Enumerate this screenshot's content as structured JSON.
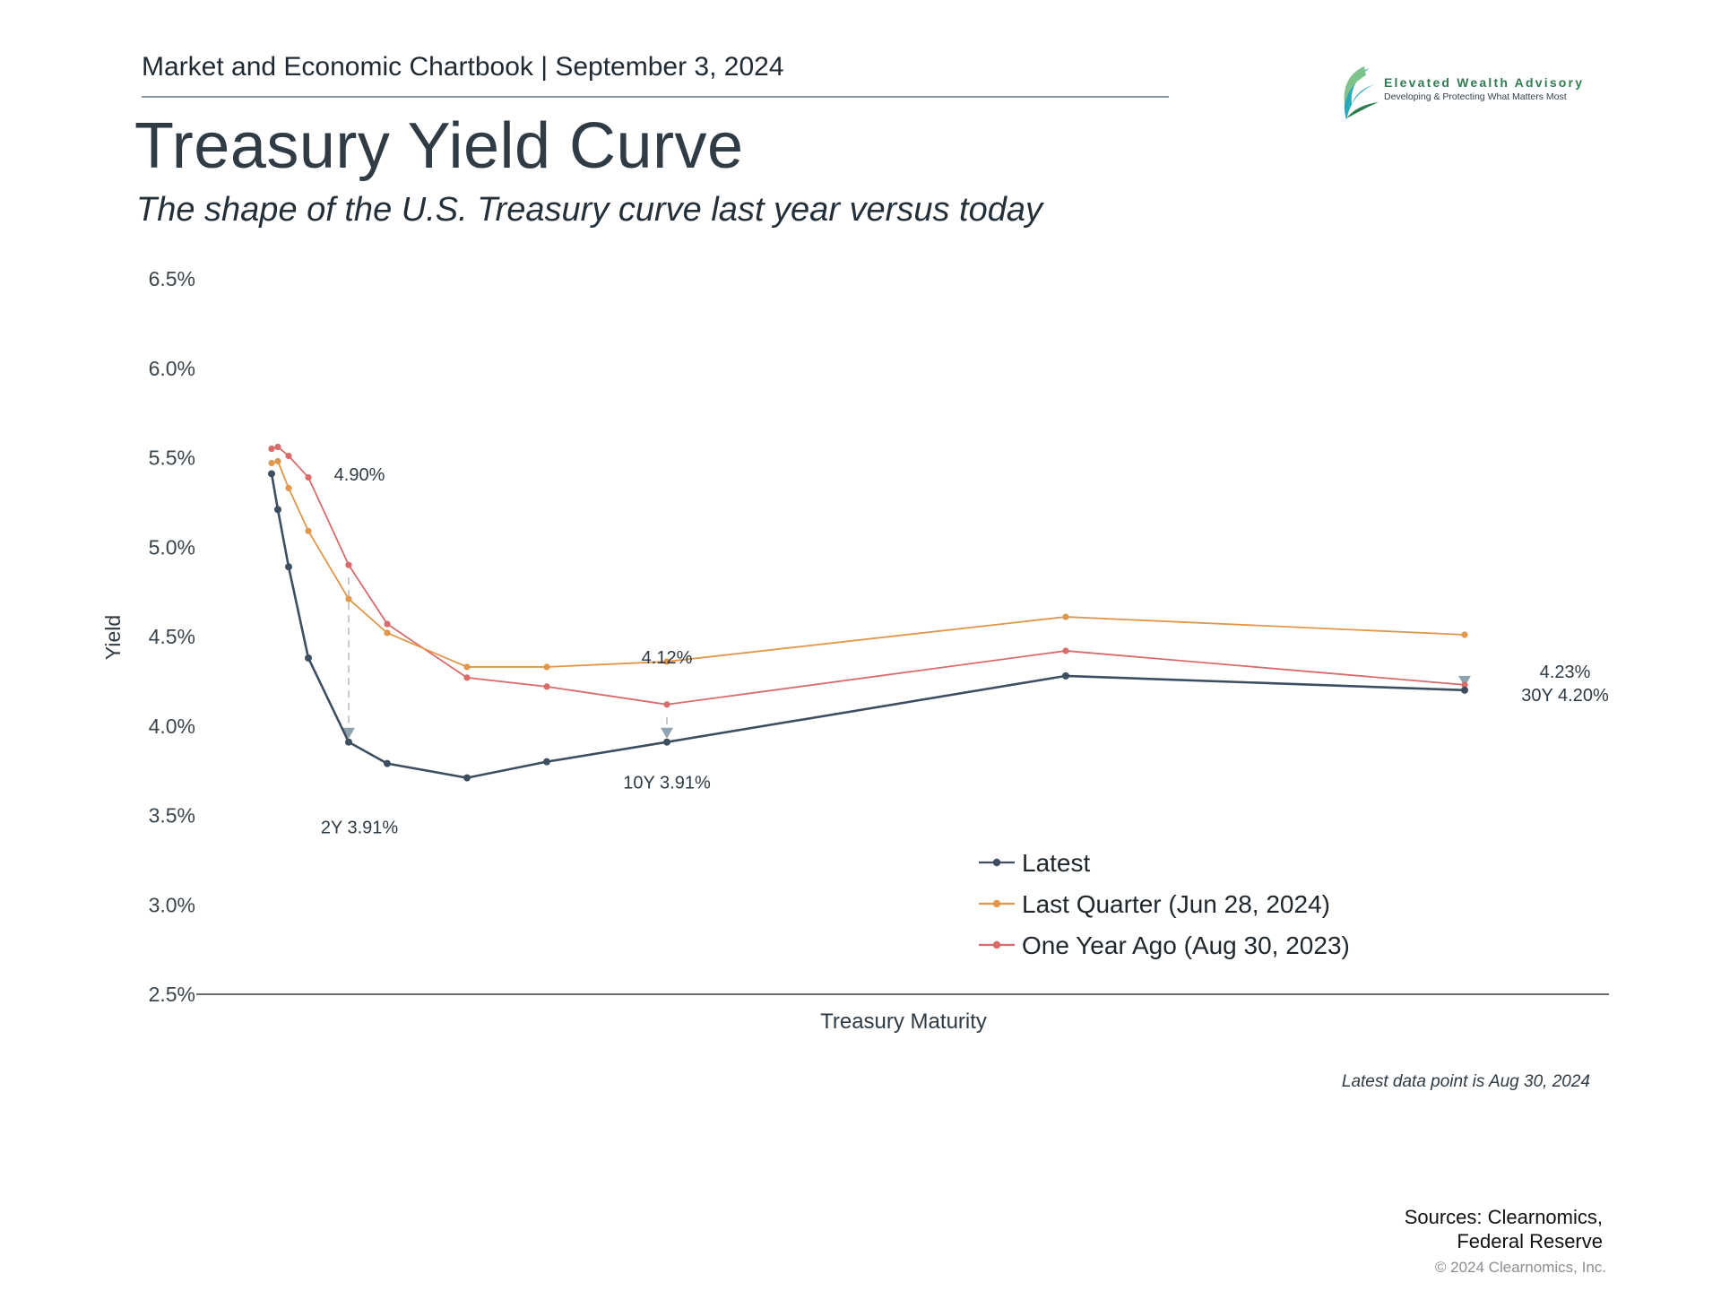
{
  "header": {
    "text": "Market and Economic Chartbook | September 3, 2024"
  },
  "title": "Treasury Yield Curve",
  "subtitle": "The shape of the U.S. Treasury curve last year versus today",
  "logo": {
    "name": "Elevated Wealth Advisory",
    "tagline": "Developing & Protecting What Matters Most",
    "colors": [
      "#2e7d4f",
      "#7cc48c",
      "#2aa7b8"
    ]
  },
  "chart_data": {
    "type": "line",
    "xlabel": "Treasury Maturity",
    "ylabel": "Yield",
    "ylim": [
      2.5,
      6.5
    ],
    "yticks": [
      "2.5%",
      "3.0%",
      "3.5%",
      "4.0%",
      "4.5%",
      "5.0%",
      "5.5%",
      "6.0%",
      "6.5%"
    ],
    "x_maturity_years": [
      0.083,
      0.25,
      0.5,
      1,
      2,
      3,
      5,
      7,
      10,
      20,
      30
    ],
    "series": [
      {
        "name": "Latest",
        "color": "#3c4e5f",
        "values": [
          5.41,
          5.21,
          4.89,
          4.38,
          3.91,
          3.79,
          3.71,
          3.8,
          3.91,
          4.28,
          4.2
        ]
      },
      {
        "name": "Last Quarter (Jun 28, 2024)",
        "color": "#e0974a",
        "values": [
          5.47,
          5.48,
          5.33,
          5.09,
          4.71,
          4.52,
          4.33,
          4.33,
          4.36,
          4.61,
          4.51
        ]
      },
      {
        "name": "One Year Ago (Aug 30, 2023)",
        "color": "#d96b6b",
        "values": [
          5.55,
          5.56,
          5.51,
          5.39,
          4.9,
          4.57,
          4.27,
          4.22,
          4.12,
          4.42,
          4.23
        ]
      }
    ],
    "annotations": [
      {
        "x": 2,
        "y": 4.9,
        "text": "4.90%"
      },
      {
        "x": 2,
        "y": 3.91,
        "text": "2Y 3.91%"
      },
      {
        "x": 10,
        "y": 4.12,
        "text": "4.12%"
      },
      {
        "x": 10,
        "y": 3.91,
        "text": "10Y 3.91%"
      },
      {
        "x": 30,
        "y": 4.23,
        "text": "4.23%"
      },
      {
        "x": 30,
        "y": 4.2,
        "text": "30Y 4.20%"
      }
    ],
    "legend_position": "bottom-center",
    "grid": false
  },
  "footer": {
    "note": "Latest data point is Aug 30, 2024",
    "sources_line1": "Sources: Clearnomics,",
    "sources_line2": "Federal Reserve",
    "copyright": "© 2024 Clearnomics, Inc."
  }
}
